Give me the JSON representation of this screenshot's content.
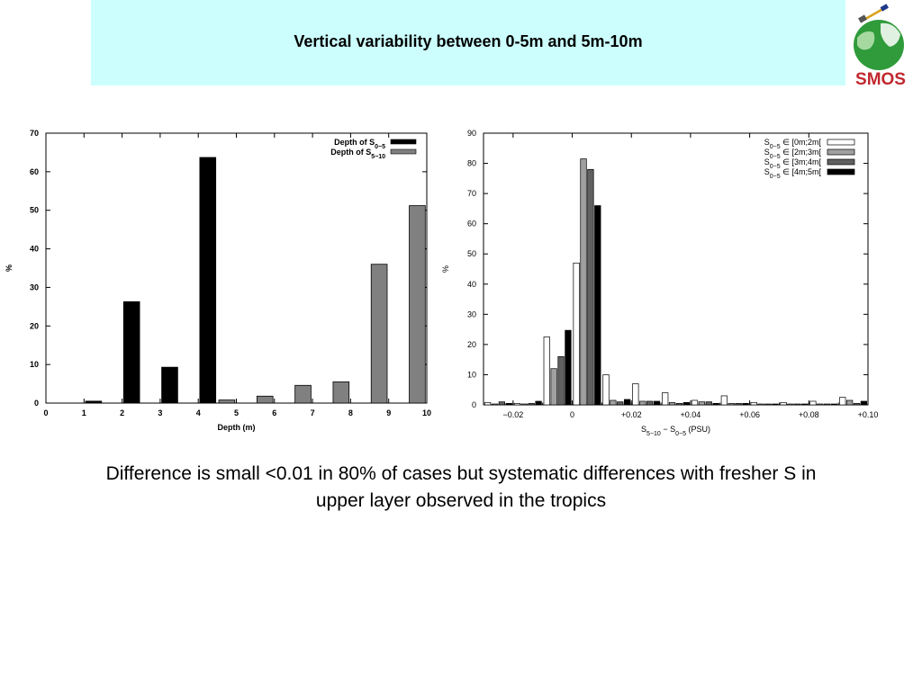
{
  "header": {
    "title": "Vertical variability between 0-5m and 5m-10m",
    "background": "#ccfefe"
  },
  "logo": {
    "text": "SMOS",
    "text_color": "#c0282e",
    "globe_color": "#2f9b3a"
  },
  "caption": {
    "line1": "Difference is small <0.01 in 80% of cases but systematic differences with fresher S in",
    "line2": "upper layer observed in the tropics"
  },
  "chart_data": [
    {
      "type": "bar",
      "xlabel": "Depth (m)",
      "ylabel": "%",
      "xlim": [
        0,
        10
      ],
      "ylim": [
        0,
        70
      ],
      "xticks": [
        "0",
        "1",
        "2",
        "3",
        "4",
        "5",
        "6",
        "7",
        "8",
        "9",
        "10"
      ],
      "yticks": [
        "0",
        "10",
        "20",
        "30",
        "40",
        "50",
        "60",
        "70"
      ],
      "legend_position": "top-right",
      "series": [
        {
          "name": "Depth of S",
          "name_sub": "0−5",
          "color": "#000000",
          "x": [
            1.25,
            2.25,
            3.25,
            4.25
          ],
          "values": [
            0.5,
            26.3,
            9.3,
            63.7
          ]
        },
        {
          "name": "Depth of S",
          "name_sub": "5−10",
          "color": "#808080",
          "x": [
            4.75,
            5.75,
            6.75,
            7.75,
            8.75,
            9.75
          ],
          "values": [
            0.8,
            1.8,
            4.6,
            5.5,
            36,
            51.2
          ]
        }
      ]
    },
    {
      "type": "bar",
      "xlabel_parts": [
        "S",
        "5−10",
        "  −  S",
        "0−5",
        " (PSU)"
      ],
      "ylabel": "%",
      "xlim": [
        -0.03,
        0.1
      ],
      "ylim": [
        0,
        90
      ],
      "xticks": [
        {
          "value": -0.02,
          "label": "−0.02"
        },
        {
          "value": 0,
          "label": "0"
        },
        {
          "value": 0.02,
          "label": "+0.02"
        },
        {
          "value": 0.04,
          "label": "+0.04"
        },
        {
          "value": 0.06,
          "label": "+0.06"
        },
        {
          "value": 0.08,
          "label": "+0.08"
        },
        {
          "value": 0.1,
          "label": "+0.10"
        }
      ],
      "yticks": [
        "0",
        "10",
        "20",
        "30",
        "40",
        "50",
        "60",
        "70",
        "80",
        "90"
      ],
      "bin_centers": [
        -0.025,
        -0.015,
        -0.005,
        0.005,
        0.015,
        0.025,
        0.035,
        0.045,
        0.055,
        0.065,
        0.075,
        0.085,
        0.095
      ],
      "legend_position": "top-right",
      "series": [
        {
          "name": "S",
          "name_sub": "0−5",
          "name_tail": " ∈ [0m;2m[",
          "color": "#ffffff",
          "values": [
            0.8,
            0.5,
            22.5,
            47,
            10,
            7,
            4,
            1.5,
            3,
            0.8,
            0.8,
            1.2,
            2.5
          ]
        },
        {
          "name": "S",
          "name_sub": "0−5",
          "name_tail": " ∈ [2m;3m[",
          "color": "#a0a0a0",
          "values": [
            0.3,
            0.3,
            12,
            81.5,
            1.5,
            1.2,
            0.8,
            1,
            0.5,
            0.3,
            0.3,
            0.3,
            1.5
          ]
        },
        {
          "name": "S",
          "name_sub": "0−5",
          "name_tail": " ∈ [3m;4m[",
          "color": "#606060",
          "values": [
            1,
            0.5,
            16,
            78,
            1,
            1.2,
            0.5,
            1,
            0.5,
            0.3,
            0.3,
            0.3,
            0.5
          ]
        },
        {
          "name": "S",
          "name_sub": "0−5",
          "name_tail": " ∈ [4m;5m[",
          "color": "#000000",
          "values": [
            0.5,
            1.2,
            24.7,
            66,
            1.8,
            1.2,
            0.8,
            0.5,
            0.5,
            0.3,
            0.3,
            0.3,
            1.2
          ]
        }
      ]
    }
  ]
}
